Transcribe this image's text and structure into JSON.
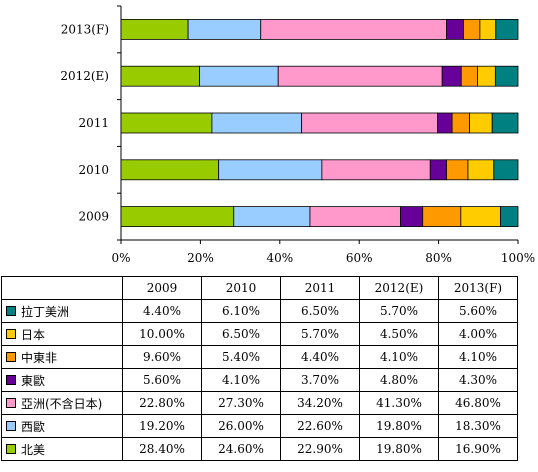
{
  "chart_data": {
    "type": "bar",
    "orientation": "horizontal",
    "stacked": "percent",
    "categories": [
      "2013(F)",
      "2012(E)",
      "2011",
      "2010",
      "2009"
    ],
    "series": [
      {
        "name": "北美",
        "color": "#99cc00",
        "values": {
          "2009": 28.4,
          "2010": 24.6,
          "2011": 22.9,
          "2012(E)": 19.8,
          "2013(F)": 16.9
        }
      },
      {
        "name": "西歐",
        "color": "#99ccff",
        "values": {
          "2009": 19.2,
          "2010": 26.0,
          "2011": 22.6,
          "2012(E)": 19.8,
          "2013(F)": 18.3
        }
      },
      {
        "name": "亞洲(不含日本)",
        "color": "#ff99cc",
        "values": {
          "2009": 22.8,
          "2010": 27.3,
          "2011": 34.2,
          "2012(E)": 41.3,
          "2013(F)": 46.8
        }
      },
      {
        "name": "東歐",
        "color": "#660099",
        "values": {
          "2009": 5.6,
          "2010": 4.1,
          "2011": 3.7,
          "2012(E)": 4.8,
          "2013(F)": 4.3
        }
      },
      {
        "name": "中東非",
        "color": "#ff9900",
        "values": {
          "2009": 9.6,
          "2010": 5.4,
          "2011": 4.4,
          "2012(E)": 4.1,
          "2013(F)": 4.1
        }
      },
      {
        "name": "日本",
        "color": "#ffcc00",
        "values": {
          "2009": 10.0,
          "2010": 6.5,
          "2011": 5.7,
          "2012(E)": 4.5,
          "2013(F)": 4.0
        }
      },
      {
        "name": "拉丁美洲",
        "color": "#008080",
        "values": {
          "2009": 4.4,
          "2010": 6.1,
          "2011": 6.5,
          "2012(E)": 5.7,
          "2013(F)": 5.6
        }
      }
    ],
    "x_ticks": [
      "0%",
      "20%",
      "40%",
      "60%",
      "80%",
      "100%"
    ],
    "xlim": [
      0,
      100
    ],
    "grid": false,
    "legend": "data-table-below"
  },
  "table": {
    "columns": [
      "2009",
      "2010",
      "2011",
      "2012(E)",
      "2013(F)"
    ],
    "rows": [
      {
        "label": "拉丁美洲",
        "color": "#008080",
        "values": [
          "4.40%",
          "6.10%",
          "6.50%",
          "5.70%",
          "5.60%"
        ]
      },
      {
        "label": "日本",
        "color": "#ffcc00",
        "values": [
          "10.00%",
          "6.50%",
          "5.70%",
          "4.50%",
          "4.00%"
        ]
      },
      {
        "label": "中東非",
        "color": "#ff9900",
        "values": [
          "9.60%",
          "5.40%",
          "4.40%",
          "4.10%",
          "4.10%"
        ]
      },
      {
        "label": "東歐",
        "color": "#660099",
        "values": [
          "5.60%",
          "4.10%",
          "3.70%",
          "4.80%",
          "4.30%"
        ]
      },
      {
        "label": "亞洲(不含日本)",
        "color": "#ff99cc",
        "values": [
          "22.80%",
          "27.30%",
          "34.20%",
          "41.30%",
          "46.80%"
        ]
      },
      {
        "label": "西歐",
        "color": "#99ccff",
        "values": [
          "19.20%",
          "26.00%",
          "22.60%",
          "19.80%",
          "18.30%"
        ]
      },
      {
        "label": "北美",
        "color": "#99cc00",
        "values": [
          "28.40%",
          "24.60%",
          "22.90%",
          "19.80%",
          "16.90%"
        ]
      }
    ]
  }
}
